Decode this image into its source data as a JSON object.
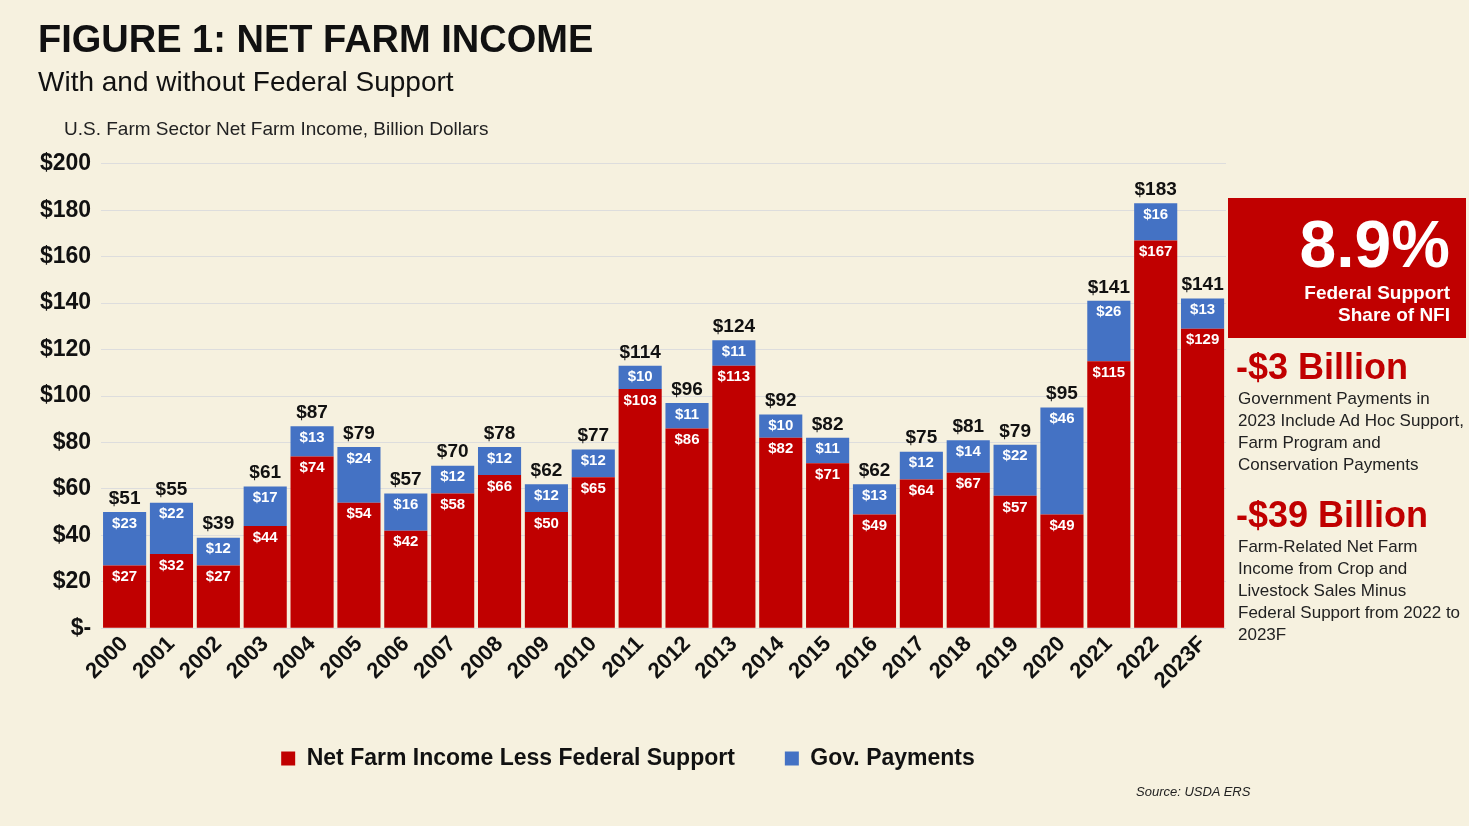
{
  "chart_data": {
    "type": "bar",
    "title": "FIGURE 1: NET FARM INCOME",
    "subtitle": "With and without Federal Support",
    "ylabel": "U.S. Farm Sector Net Farm Income, Billion Dollars",
    "categories": [
      "2000",
      "2001",
      "2002",
      "2003",
      "2004",
      "2005",
      "2006",
      "2007",
      "2008",
      "2009",
      "2010",
      "2011",
      "2012",
      "2013",
      "2014",
      "2015",
      "2016",
      "2017",
      "2018",
      "2019",
      "2020",
      "2021",
      "2022",
      "2023F"
    ],
    "stacked": true,
    "series": [
      {
        "name": "Net Farm Income Less Federal Support",
        "color": "#c00000",
        "values": [
          27,
          32,
          27,
          44,
          74,
          54,
          42,
          58,
          66,
          50,
          65,
          103,
          86,
          113,
          82,
          71,
          49,
          64,
          67,
          57,
          49,
          115,
          167,
          129
        ],
        "value_labels": [
          "$27",
          "$32",
          "$27",
          "$44",
          "$74",
          "$54",
          "$42",
          "$58",
          "$66",
          "$50",
          "$65",
          "$103",
          "$86",
          "$113",
          "$82",
          "$71",
          "$49",
          "$64",
          "$67",
          "$57",
          "$49",
          "$115",
          "$167",
          "$129"
        ]
      },
      {
        "name": "Gov. Payments",
        "color": "#4472c4",
        "values": [
          23,
          22,
          12,
          17,
          13,
          24,
          16,
          12,
          12,
          12,
          12,
          10,
          11,
          11,
          10,
          11,
          13,
          12,
          14,
          22,
          46,
          26,
          16,
          13
        ],
        "value_labels": [
          "$23",
          "$22",
          "$12",
          "$17",
          "$13",
          "$24",
          "$16",
          "$12",
          "$12",
          "$12",
          "$12",
          "$10",
          "$11",
          "$11",
          "$10",
          "$11",
          "$13",
          "$12",
          "$14",
          "$22",
          "$46",
          "$26",
          "$16",
          "$13"
        ]
      }
    ],
    "totals": [
      "$51",
      "$55",
      "$39",
      "$61",
      "$87",
      "$79",
      "$57",
      "$70",
      "$78",
      "$62",
      "$77",
      "$114",
      "$96",
      "$124",
      "$92",
      "$82",
      "$62",
      "$75",
      "$81",
      "$79",
      "$95",
      "$141",
      "$183",
      "$141"
    ],
    "ylim": [
      0,
      200
    ],
    "yticks": [
      {
        "value": 0,
        "label": "$-"
      },
      {
        "value": 20,
        "label": "$20"
      },
      {
        "value": 40,
        "label": "$40"
      },
      {
        "value": 60,
        "label": "$60"
      },
      {
        "value": 80,
        "label": "$80"
      },
      {
        "value": 100,
        "label": "$100"
      },
      {
        "value": 120,
        "label": "$120"
      },
      {
        "value": 140,
        "label": "$140"
      },
      {
        "value": 160,
        "label": "$160"
      },
      {
        "value": 180,
        "label": "$180"
      },
      {
        "value": 200,
        "label": "$200"
      }
    ],
    "grid": "y",
    "legend": "bottom",
    "annotations": [
      "8.9%",
      "Federal Support Share of NFI",
      "-$3 Billion",
      "Government Payments in 2023 Include Ad Hoc Support, Farm Program and Conservation Payments",
      "-$39 Billion",
      "Farm-Related Net Farm Income from Crop and Livestock Sales Minus Federal Support from 2022 to 2023F",
      "Source: USDA ERS"
    ]
  }
}
